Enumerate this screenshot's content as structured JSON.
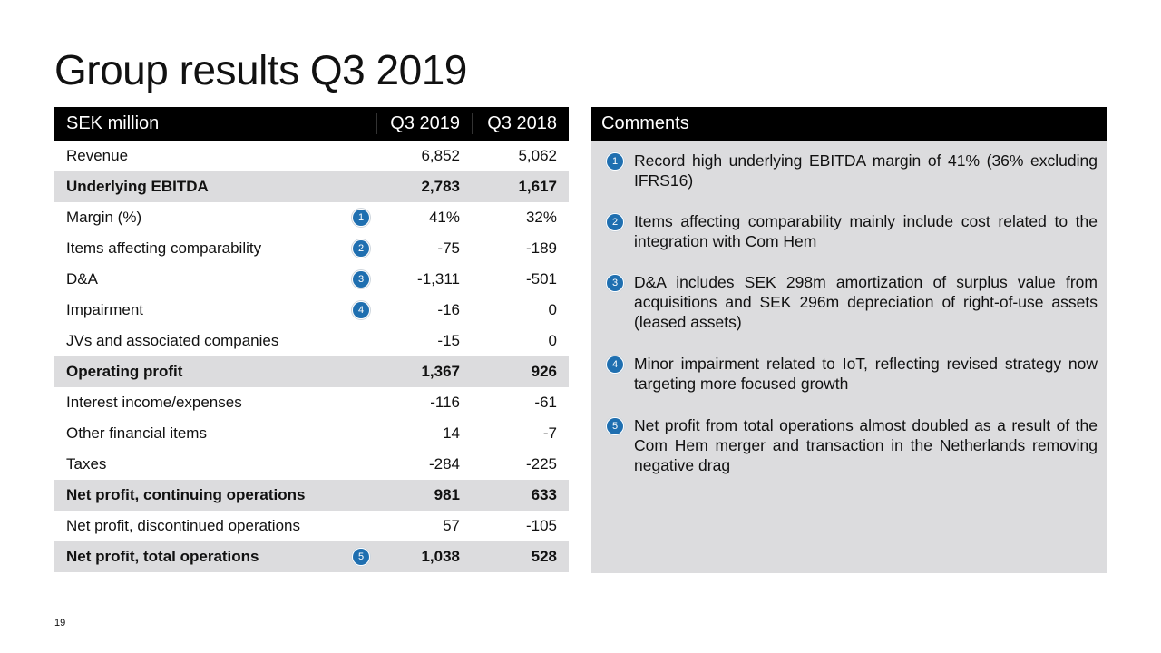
{
  "title": "Group results Q3 2019",
  "table": {
    "headers": [
      "SEK million",
      "Q3 2019",
      "Q3 2018"
    ],
    "rows": [
      {
        "label": "Revenue",
        "q3_2019": "6,852",
        "q3_2018": "5,062",
        "bold": false,
        "badge": ""
      },
      {
        "label": "Underlying EBITDA",
        "q3_2019": "2,783",
        "q3_2018": "1,617",
        "bold": true,
        "badge": ""
      },
      {
        "label": "Margin (%)",
        "q3_2019": "41%",
        "q3_2018": "32%",
        "bold": false,
        "badge": "1"
      },
      {
        "label": "Items affecting comparability",
        "q3_2019": "-75",
        "q3_2018": "-189",
        "bold": false,
        "badge": "2"
      },
      {
        "label": "D&A",
        "q3_2019": "-1,311",
        "q3_2018": "-501",
        "bold": false,
        "badge": "3"
      },
      {
        "label": "Impairment",
        "q3_2019": "-16",
        "q3_2018": "0",
        "bold": false,
        "badge": "4"
      },
      {
        "label": "JVs and associated companies",
        "q3_2019": "-15",
        "q3_2018": "0",
        "bold": false,
        "badge": ""
      },
      {
        "label": "Operating profit",
        "q3_2019": "1,367",
        "q3_2018": "926",
        "bold": true,
        "badge": ""
      },
      {
        "label": "Interest income/expenses",
        "q3_2019": "-116",
        "q3_2018": "-61",
        "bold": false,
        "badge": ""
      },
      {
        "label": "Other financial items",
        "q3_2019": "14",
        "q3_2018": "-7",
        "bold": false,
        "badge": ""
      },
      {
        "label": "Taxes",
        "q3_2019": "-284",
        "q3_2018": "-225",
        "bold": false,
        "badge": ""
      },
      {
        "label": "Net profit, continuing operations",
        "q3_2019": "981",
        "q3_2018": "633",
        "bold": true,
        "badge": ""
      },
      {
        "label": "Net profit, discontinued operations",
        "q3_2019": "57",
        "q3_2018": "-105",
        "bold": false,
        "badge": ""
      },
      {
        "label": "Net profit, total operations",
        "q3_2019": "1,038",
        "q3_2018": "528",
        "bold": true,
        "badge": "5"
      }
    ]
  },
  "comments": {
    "header": "Comments",
    "items": [
      {
        "n": "1",
        "text": "Record high underlying EBITDA margin of 41% (36% excluding IFRS16)"
      },
      {
        "n": "2",
        "text": "Items affecting comparability mainly include cost related to the integration with Com Hem"
      },
      {
        "n": "3",
        "text": "D&A includes SEK 298m amortization of surplus value from acquisitions and SEK 296m depreciation of right-of-use assets (leased assets)"
      },
      {
        "n": "4",
        "text": "Minor impairment related to IoT, reflecting revised strategy now targeting more focused growth"
      },
      {
        "n": "5",
        "text": "Net profit from total operations almost doubled as a result of the Com Hem merger and transaction in the Netherlands removing negative drag"
      }
    ]
  },
  "page_number": "19",
  "colors": {
    "badge": "#1f6fb0",
    "header_bg": "#000000",
    "highlight": "#dcdcde"
  }
}
